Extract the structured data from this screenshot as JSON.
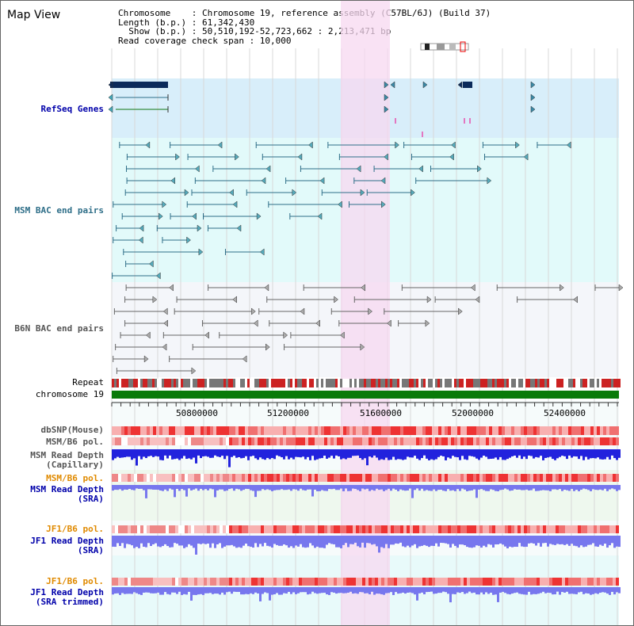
{
  "header": {
    "title": "Map View",
    "info_lines": [
      "Chromosome    : Chromosome 19, reference assembly (C57BL/6J) (Build 37)",
      "Length (b.p.) : 61,342,430",
      "  Show (b.p.) : 50,510,192-52,723,662 : 2,213,471 bp",
      "Read coverage check span : 10,000"
    ]
  },
  "colors": {
    "refseq_band": "#d8eefa",
    "bac_band": "#e2fafa",
    "b6n_band": "#f4f6fa",
    "highlight": "#f7d8f0",
    "gene_dark": "#0b2a5a",
    "bac_line": "#2e6e88",
    "b6n_line": "#666666",
    "chromosome": "#0a7a0a",
    "snp": "#e84040",
    "depth_blue": "#2222dd",
    "depth_light": "#7777ee",
    "orange_label": "#e08a00",
    "blue_label": "#0000aa"
  },
  "tracks": {
    "refseq": "RefSeq Genes",
    "msm_bac": "MSM BAC end pairs",
    "b6n_bac": "B6N BAC end pairs",
    "repeat": "Repeat",
    "chromosome": "chromosome 19",
    "dbsnp": "dbSNP(Mouse)",
    "msm_pol_1": "MSM/B6 pol.",
    "msm_depth_cap_1": "MSM Read Depth",
    "msm_depth_cap_2": "(Capillary)",
    "msm_pol_2": "MSM/B6 pol.",
    "msm_depth_sra_1": "MSM Read Depth",
    "msm_depth_sra_2": "(SRA)",
    "jf1_pol_1": "JF1/B6 pol.",
    "jf1_depth_sra_1": "JF1 Read Depth",
    "jf1_depth_sra_2": "(SRA)",
    "jf1_pol_2": "JF1/B6 pol.",
    "jf1_depth_trim_1": "JF1 Read Depth",
    "jf1_depth_trim_2": "(SRA trimmed)"
  },
  "axis": {
    "ticks": [
      "50800000",
      "51200000",
      "51600000",
      "52000000",
      "52400000"
    ]
  }
}
